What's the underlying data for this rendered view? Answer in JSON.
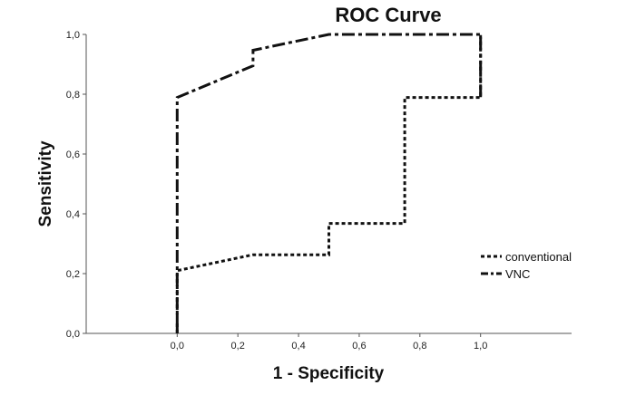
{
  "chart_data": {
    "type": "line",
    "title": "ROC Curve",
    "xlabel": "1 - Specificity",
    "ylabel": "Sensitivity",
    "xlim": [
      -0.3,
      1.3
    ],
    "ylim": [
      0,
      1
    ],
    "xticks": [
      "0,0",
      "0,2",
      "0,4",
      "0,6",
      "0,8",
      "1,0"
    ],
    "yticks": [
      "0,0",
      "0,2",
      "0,4",
      "0,6",
      "0,8",
      "1,0"
    ],
    "grid": false,
    "legend_position": "right",
    "series": [
      {
        "name": "conventional",
        "style": "dotted",
        "color": "#111111",
        "x": [
          0,
          0,
          0.25,
          0.5,
          0.5,
          0.75,
          0.75,
          1.0,
          1.0
        ],
        "y": [
          0,
          0.21,
          0.263,
          0.263,
          0.368,
          0.368,
          0.789,
          0.789,
          1.0
        ]
      },
      {
        "name": "VNC",
        "style": "dash-dot",
        "color": "#111111",
        "x": [
          0,
          0,
          0.25,
          0.25,
          0.5,
          1.0,
          1.0
        ],
        "y": [
          0,
          0.789,
          0.895,
          0.947,
          1.0,
          1.0,
          0.789
        ]
      }
    ]
  }
}
